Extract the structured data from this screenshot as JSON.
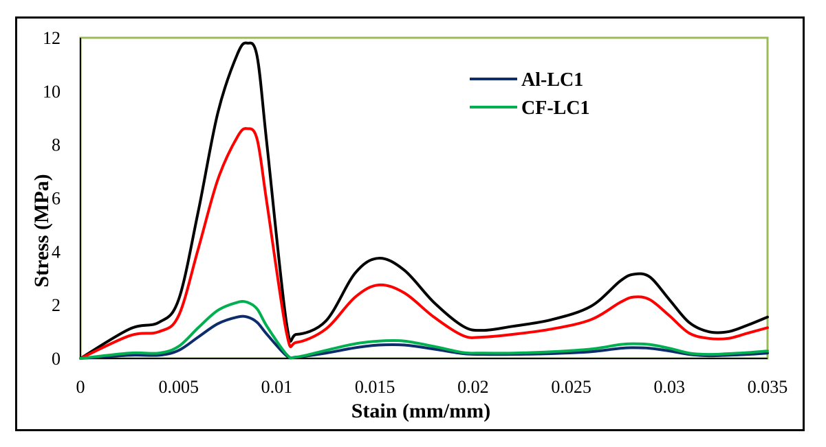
{
  "chart_data": {
    "type": "line",
    "xlabel": "Stain (mm/mm)",
    "ylabel": "Stress (MPa)",
    "xlim": [
      0,
      0.035
    ],
    "ylim": [
      0,
      12
    ],
    "xticks": [
      0,
      0.005,
      0.01,
      0.015,
      0.02,
      0.025,
      0.03,
      0.035
    ],
    "xtick_labels": [
      "0",
      "0.005",
      "0.01",
      "0.015",
      "0.02",
      "0.025",
      "0.03",
      "0.035"
    ],
    "yticks": [
      0,
      2,
      4,
      6,
      8,
      10,
      12
    ],
    "ytick_labels": [
      "0",
      "2",
      "4",
      "6",
      "8",
      "10",
      "12"
    ],
    "grid": false,
    "legend_position": "top-right",
    "plot_border_color": "#9bbb59",
    "series": [
      {
        "color": "#000000",
        "x": [
          0,
          0.0025,
          0.004,
          0.005,
          0.006,
          0.007,
          0.008,
          0.0085,
          0.009,
          0.0095,
          0.0105,
          0.011,
          0.0125,
          0.014,
          0.0152,
          0.0165,
          0.018,
          0.0195,
          0.0205,
          0.022,
          0.024,
          0.026,
          0.0275,
          0.0282,
          0.029,
          0.03,
          0.031,
          0.032,
          0.033,
          0.034,
          0.035
        ],
        "y": [
          0,
          1.1,
          1.35,
          2.2,
          5.5,
          9.2,
          11.4,
          11.8,
          11.3,
          8.0,
          1.3,
          0.9,
          1.4,
          3.2,
          3.75,
          3.3,
          2.1,
          1.2,
          1.05,
          1.2,
          1.45,
          1.95,
          2.9,
          3.15,
          3.05,
          2.2,
          1.35,
          1.0,
          1.0,
          1.25,
          1.55
        ]
      },
      {
        "color": "#ff0000",
        "x": [
          0,
          0.0025,
          0.004,
          0.005,
          0.006,
          0.007,
          0.008,
          0.0085,
          0.009,
          0.0095,
          0.0105,
          0.011,
          0.0125,
          0.014,
          0.0152,
          0.0165,
          0.018,
          0.0195,
          0.0205,
          0.022,
          0.024,
          0.026,
          0.0275,
          0.0282,
          0.029,
          0.03,
          0.031,
          0.032,
          0.033,
          0.034,
          0.035
        ],
        "y": [
          0,
          0.85,
          1.0,
          1.6,
          4.1,
          6.7,
          8.3,
          8.6,
          8.2,
          5.8,
          0.95,
          0.6,
          1.1,
          2.3,
          2.75,
          2.45,
          1.55,
          0.85,
          0.8,
          0.9,
          1.1,
          1.45,
          2.1,
          2.3,
          2.2,
          1.6,
          0.95,
          0.75,
          0.75,
          0.95,
          1.15
        ]
      },
      {
        "name": "Al-LC1",
        "color": "#0d2c6b",
        "x": [
          0,
          0.0025,
          0.004,
          0.005,
          0.006,
          0.007,
          0.008,
          0.0085,
          0.009,
          0.0095,
          0.0105,
          0.011,
          0.0125,
          0.014,
          0.0152,
          0.0165,
          0.018,
          0.0195,
          0.0205,
          0.022,
          0.024,
          0.026,
          0.0275,
          0.0282,
          0.029,
          0.03,
          0.031,
          0.032,
          0.033,
          0.034,
          0.035
        ],
        "y": [
          0,
          0.12,
          0.12,
          0.3,
          0.8,
          1.3,
          1.55,
          1.55,
          1.35,
          0.9,
          0.1,
          0.05,
          0.2,
          0.4,
          0.5,
          0.5,
          0.35,
          0.18,
          0.15,
          0.15,
          0.18,
          0.25,
          0.38,
          0.4,
          0.38,
          0.28,
          0.15,
          0.1,
          0.12,
          0.15,
          0.2
        ]
      },
      {
        "name": "CF-LC1",
        "color": "#00b050",
        "x": [
          0,
          0.0025,
          0.004,
          0.005,
          0.006,
          0.007,
          0.008,
          0.0085,
          0.009,
          0.0095,
          0.0105,
          0.011,
          0.0125,
          0.014,
          0.0152,
          0.0165,
          0.018,
          0.0195,
          0.0205,
          0.022,
          0.024,
          0.026,
          0.0275,
          0.0282,
          0.029,
          0.03,
          0.031,
          0.032,
          0.033,
          0.034,
          0.035
        ],
        "y": [
          0,
          0.2,
          0.2,
          0.45,
          1.15,
          1.8,
          2.1,
          2.1,
          1.85,
          1.2,
          0.15,
          0.05,
          0.3,
          0.55,
          0.65,
          0.65,
          0.45,
          0.22,
          0.2,
          0.2,
          0.25,
          0.35,
          0.52,
          0.55,
          0.52,
          0.38,
          0.2,
          0.15,
          0.18,
          0.22,
          0.28
        ]
      }
    ]
  }
}
